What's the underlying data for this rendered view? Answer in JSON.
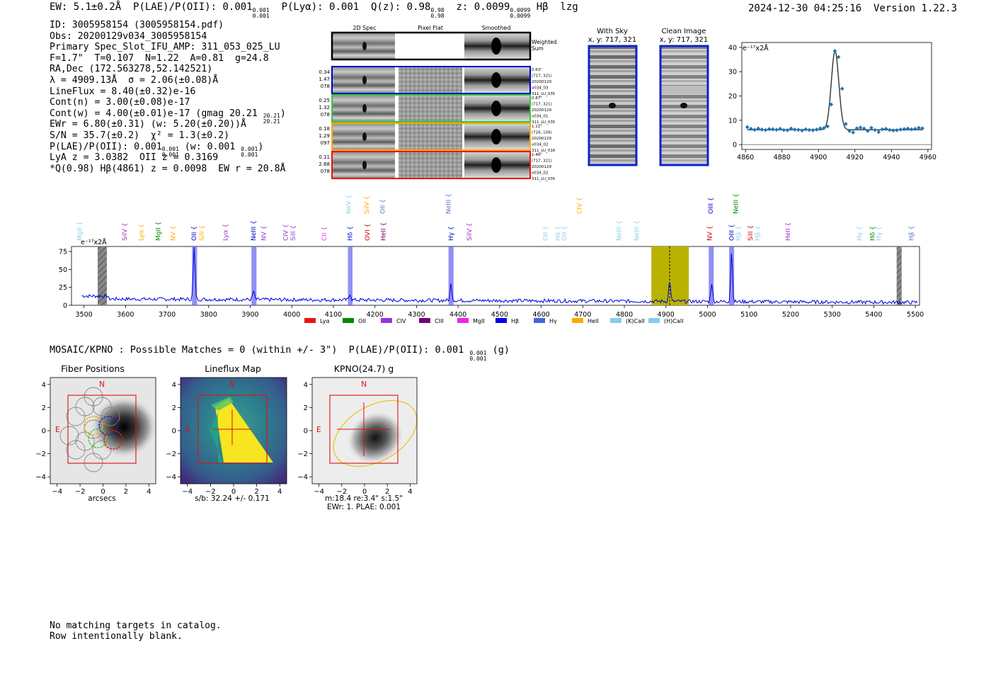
{
  "header": {
    "ew": "EW: 5.1±0.2Å",
    "plae_label": "P(LAE)/P(OII):",
    "plae_val": "0.001",
    "plae_sup": "0.001",
    "plae_sub": "0.001",
    "plya_label": "P(Lyα):",
    "plya_val": "0.001",
    "q_label": "Q(z):",
    "q_val": "0.98",
    "q_sup": "0.98",
    "q_sub": "0.98",
    "z_label": "z:",
    "z_val": "0.0099",
    "z_sup": "0.0099",
    "z_sub": "0.0099",
    "line": "Hβ",
    "tag": "lzg",
    "timestamp": "2024-12-30 04:25:16",
    "version": "Version 1.22.3"
  },
  "info": {
    "id": "ID: 3005958154 (3005958154.pdf)",
    "obs": "Obs: 20200129v034_3005958154",
    "primary": "Primary Spec_Slot_IFU_AMP: 311_053_025_LU",
    "fwhm": "F=1.7\"  T=0.107  N=1.22  A=0.81  g=24.8",
    "radec": "RA,Dec (172.563278,52.142521)",
    "lambda": "λ = 4909.13Å  σ = 2.06(±0.08)Å",
    "lineflux": "LineFlux = 8.40(±0.32)e-16",
    "contn": "Cont(n) = 3.00(±0.08)e-17",
    "contw": "Cont(w) = 4.00(±0.01)e-17 (gmag 20.21",
    "contw_sup": "20.21",
    "contw_sub": "20.21",
    "ewr": "EWr = 6.80(±0.31) (w: 5.20(±0.20))Å",
    "sn": "S/N = 35.7(±0.2)  χ² = 1.3(±0.2)",
    "plae_line": "P(LAE)/P(OII): 0.001",
    "plae_line_sup": "0.001",
    "plae_line_sub": "0.001",
    "plae_line_w": "(w: 0.001",
    "plae_line_w_sup": "0.001",
    "plae_line_w_sub": "0.001",
    "lya": "LyA z = 3.0382  OII z = 0.3169",
    "q": "*Q(0.98) Hβ(4861) z = 0.0098  EW r = 20.8Å"
  },
  "cutouts": {
    "headers": [
      "2D Spec",
      "Pixel Flat",
      "Smoothed"
    ],
    "weighted_sum": [
      "Weighted",
      "Sum"
    ],
    "rows": [
      {
        "color": "#0000cc",
        "left": [
          "0.34",
          "1.47",
          "078"
        ],
        "right": [
          "0.63\"",
          "(717, 321)",
          "20200129",
          "v034_03",
          "311_LU_035"
        ]
      },
      {
        "color": "#33cc33",
        "left": [
          "0.25",
          "1.32",
          "078"
        ],
        "right": [
          "0.87\"",
          "(717, 321)",
          "20200129",
          "v034_01",
          "311_LU_035"
        ]
      },
      {
        "color": "#ffaa00",
        "left": [
          "0.18",
          "1.29",
          "097"
        ],
        "right": [
          "1.11\"",
          "(716, 156)",
          "20200129",
          "v034_02",
          "311_LU_016"
        ]
      },
      {
        "color": "#ee1111",
        "left": [
          "0.11",
          "2.68",
          "078"
        ],
        "right": [
          "1.46\"",
          "(717, 321)",
          "20200129",
          "v034_02",
          "311_LU_035"
        ]
      }
    ]
  },
  "sky": {
    "with_sky": [
      "With Sky",
      "x, y: 717, 321"
    ],
    "clean": [
      "Clean Image",
      "x, y: 717, 321"
    ]
  },
  "zoom_chart": {
    "unit": "e⁻¹⁷x2Å",
    "xlim": [
      4858,
      4962
    ],
    "ylim": [
      -2,
      42
    ],
    "xticks": [
      4860,
      4880,
      4900,
      4920,
      4940,
      4960
    ],
    "yticks": [
      0,
      10,
      20,
      30,
      40
    ],
    "data_x": [
      4861,
      4863,
      4865,
      4867,
      4869,
      4871,
      4873,
      4875,
      4877,
      4879,
      4881,
      4883,
      4885,
      4887,
      4889,
      4891,
      4893,
      4895,
      4897,
      4899,
      4901,
      4903,
      4905,
      4907,
      4909,
      4911,
      4913,
      4915,
      4917,
      4919,
      4921,
      4923,
      4925,
      4927,
      4929,
      4931,
      4933,
      4935,
      4937,
      4939,
      4941,
      4943,
      4945,
      4947,
      4949,
      4951,
      4953,
      4955,
      4957
    ],
    "data_y": [
      7.2,
      6.5,
      6.1,
      6.6,
      6.2,
      6.0,
      6.4,
      6.3,
      6.1,
      6.5,
      6.0,
      5.9,
      6.6,
      6.2,
      6.1,
      5.8,
      6.3,
      6.0,
      5.9,
      6.2,
      6.7,
      6.8,
      7.5,
      16.5,
      38.5,
      36.0,
      23.0,
      8.5,
      5.6,
      5.0,
      6.7,
      7.0,
      6.6,
      5.6,
      6.9,
      6.0,
      5.2,
      6.3,
      6.5,
      6.0,
      5.8,
      5.9,
      6.2,
      6.4,
      6.6,
      6.3,
      6.5,
      6.9,
      6.7
    ],
    "fit": {
      "center": 4909.1,
      "sigma": 2.06,
      "amp": 32.3,
      "continuum": 6.1
    }
  },
  "chart_data": {
    "type": "line",
    "title": "",
    "unit_label": "e⁻¹⁷x2Å",
    "xlim": [
      3470,
      5510
    ],
    "ylim": [
      0,
      82
    ],
    "xticks": [
      3500,
      3600,
      3700,
      3800,
      3900,
      4000,
      4100,
      4200,
      4300,
      4400,
      4500,
      4600,
      4700,
      4800,
      4900,
      5000,
      5100,
      5200,
      5300,
      5400,
      5500
    ],
    "yticks": [
      0,
      25,
      50,
      75
    ],
    "baseline": 9,
    "emission_peaks": [
      {
        "x": 3727,
        "amp": 0
      },
      {
        "x": 3765,
        "amp": 72
      },
      {
        "x": 3908,
        "amp": 12
      },
      {
        "x": 4140,
        "amp": 9
      },
      {
        "x": 4383,
        "amp": 23
      },
      {
        "x": 4909,
        "amp": 30
      },
      {
        "x": 5010,
        "amp": 26
      },
      {
        "x": 5058,
        "amp": 70
      }
    ],
    "shaded_bands": [
      {
        "x0": 3760,
        "x1": 3772
      },
      {
        "x0": 3903,
        "x1": 3915
      },
      {
        "x0": 4135,
        "x1": 4146
      },
      {
        "x0": 4377,
        "x1": 4389
      },
      {
        "x0": 5003,
        "x1": 5015
      },
      {
        "x0": 5052,
        "x1": 5064
      }
    ],
    "hatched_bands": [
      {
        "x0": 3533,
        "x1": 3555
      },
      {
        "x0": 5455,
        "x1": 5467
      }
    ],
    "highlight_band": {
      "x0": 4865,
      "x1": 4955
    },
    "dashed_line": 4909,
    "line_labels": [
      {
        "name": "MgII",
        "x": 3490,
        "row": 0,
        "color": "#8fd0e8"
      },
      {
        "name": "SiIV",
        "x": 3598,
        "row": 0,
        "color": "#9933cc"
      },
      {
        "name": "Lyα",
        "x": 3638,
        "row": 0,
        "color": "#ffaa00"
      },
      {
        "name": "MgII",
        "x": 3679,
        "row": 0,
        "color": "#008800"
      },
      {
        "name": "NV",
        "x": 3714,
        "row": 0,
        "color": "#ffaa00"
      },
      {
        "name": "OII",
        "x": 3765,
        "row": 0,
        "color": "#0000cc"
      },
      {
        "name": "SiII",
        "x": 3783,
        "row": 0,
        "color": "#ffaa00"
      },
      {
        "name": "Lyα",
        "x": 3840,
        "row": 0,
        "color": "#9933cc"
      },
      {
        "name": "NeIII",
        "x": 3908,
        "row": 0,
        "color": "#0000cc"
      },
      {
        "name": "NV",
        "x": 3932,
        "row": 0,
        "color": "#9933cc"
      },
      {
        "name": "CIV",
        "x": 3985,
        "row": 0,
        "color": "#9933cc"
      },
      {
        "name": "SiII",
        "x": 4003,
        "row": 0,
        "color": "#9933cc"
      },
      {
        "name": "CII",
        "x": 4078,
        "row": 0,
        "color": "#dd33dd"
      },
      {
        "name": "Hδ",
        "x": 4140,
        "row": 0,
        "color": "#0000cc"
      },
      {
        "name": "OVI",
        "x": 4182,
        "row": 0,
        "color": "#cc0000"
      },
      {
        "name": "HeII",
        "x": 4220,
        "row": 0,
        "color": "#660066"
      },
      {
        "name": "NeV",
        "x": 4137,
        "row": 1,
        "color": "#8fd0e8"
      },
      {
        "name": "SiIV",
        "x": 4180,
        "row": 1,
        "color": "#ffaa00"
      },
      {
        "name": "OII",
        "x": 4218,
        "row": 1,
        "color": "#5577cc"
      },
      {
        "name": "Hγ",
        "x": 4383,
        "row": 0,
        "color": "#0000cc"
      },
      {
        "name": "NeIII",
        "x": 4377,
        "row": 1,
        "color": "#5577cc"
      },
      {
        "name": "SiIV",
        "x": 4427,
        "row": 0,
        "color": "#9933cc"
      },
      {
        "name": "CIV",
        "x": 4692,
        "row": 1,
        "color": "#ffaa00"
      },
      {
        "name": "OII",
        "x": 4610,
        "row": 0,
        "color": "#8fd0e8"
      },
      {
        "name": "Hδ",
        "x": 4640,
        "row": 0,
        "color": "#8fd0e8"
      },
      {
        "name": "OII",
        "x": 4655,
        "row": 0,
        "color": "#8fd0e8"
      },
      {
        "name": "NeIII",
        "x": 4787,
        "row": 0,
        "color": "#8fd0e8"
      },
      {
        "name": "NeIII",
        "x": 4830,
        "row": 0,
        "color": "#8fd0e8"
      },
      {
        "name": "NV",
        "x": 5005,
        "row": 0,
        "color": "#cc0000"
      },
      {
        "name": "OIII",
        "x": 5008,
        "row": 1,
        "color": "#0000cc"
      },
      {
        "name": "OIII",
        "x": 5058,
        "row": 0,
        "color": "#0000cc"
      },
      {
        "name": "Hβ",
        "x": 5074,
        "row": 0,
        "color": "#8fd0e8"
      },
      {
        "name": "SiII",
        "x": 5103,
        "row": 0,
        "color": "#cc0000"
      },
      {
        "name": "Hβ",
        "x": 5120,
        "row": 0,
        "color": "#8fd0e8"
      },
      {
        "name": "NeIII",
        "x": 5068,
        "row": 1,
        "color": "#008800"
      },
      {
        "name": "HeII",
        "x": 5193,
        "row": 0,
        "color": "#9933cc"
      },
      {
        "name": "Hγ",
        "x": 5365,
        "row": 0,
        "color": "#8fd0e8"
      },
      {
        "name": "Hδ",
        "x": 5397,
        "row": 0,
        "color": "#008800"
      },
      {
        "name": "Hγ",
        "x": 5412,
        "row": 0,
        "color": "#8fd0e8"
      },
      {
        "name": "Hβ",
        "x": 5490,
        "row": 0,
        "color": "#5577cc"
      }
    ],
    "legend": [
      {
        "name": "Lyα",
        "color": "#ee1111"
      },
      {
        "name": "OII",
        "color": "#008800"
      },
      {
        "name": "CIV",
        "color": "#9933dd"
      },
      {
        "name": "CIII",
        "color": "#770077"
      },
      {
        "name": "MgII",
        "color": "#ee22ee"
      },
      {
        "name": "Hβ",
        "color": "#0000ee"
      },
      {
        "name": "Hγ",
        "color": "#4466dd"
      },
      {
        "name": "HeII",
        "color": "#ffaa00"
      },
      {
        "name": "(K)CaII",
        "color": "#88ccee"
      },
      {
        "name": "(H)CaII",
        "color": "#88ccee"
      }
    ]
  },
  "mosaic": {
    "text": "MOSAIC/KPNO : Possible Matches = 0 (within +/- 3\")  P(LAE)/P(OII): 0.001",
    "sup": "0.001",
    "sub": "0.001",
    "suffix": "(g)"
  },
  "panels": [
    {
      "title": "Fiber Positions",
      "xlabel": "arcsecs",
      "xlabel2": "",
      "xlabel3": "",
      "n": "N",
      "e": "E"
    },
    {
      "title": "Lineflux Map",
      "xlabel": "s/b: 32.24 +/- 0.171",
      "xlabel2": "",
      "xlabel3": "",
      "n": "N",
      "e": "E"
    },
    {
      "title": "KPNO(24.7) g",
      "xlabel": "m:18.4  re:3.4\"  s:1.5\"",
      "xlabel2": "EWr: 1. PLAE: 0.001",
      "xlabel3": "",
      "n": "N",
      "e": "E"
    }
  ],
  "panel_ticks": {
    "values": [
      -4,
      -2,
      0,
      2,
      4
    ],
    "labels": [
      "−4",
      "−2",
      "0",
      "2",
      "4"
    ]
  },
  "footer": {
    "line1": "No matching targets in catalog.",
    "line2": "Row intentionally blank."
  }
}
